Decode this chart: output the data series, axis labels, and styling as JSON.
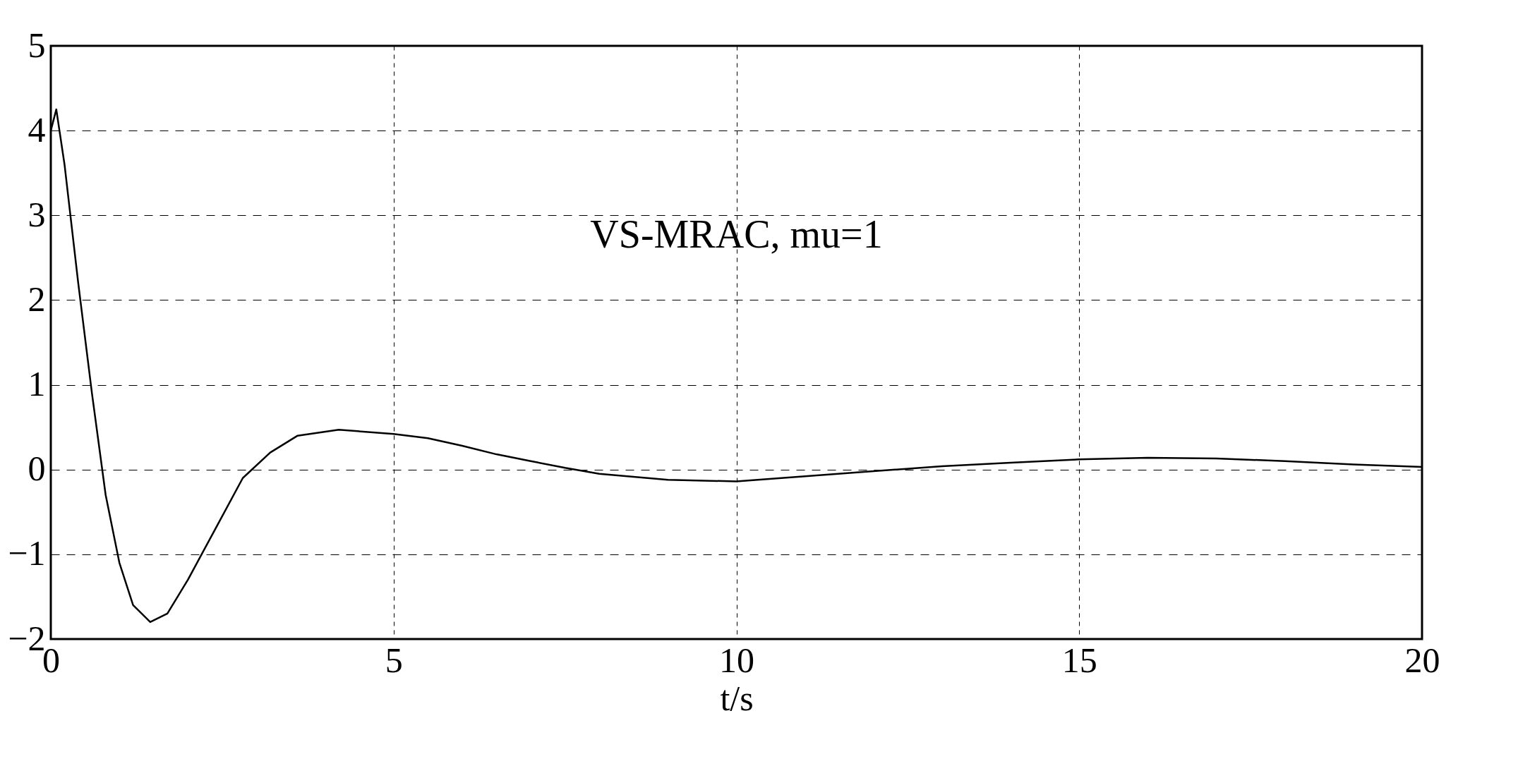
{
  "chart_data": {
    "type": "line",
    "xlabel": "t/s",
    "annotations": [
      "VS-MRAC, mu=1"
    ],
    "x": [
      0,
      0.08,
      0.2,
      0.4,
      0.6,
      0.8,
      1.0,
      1.2,
      1.45,
      1.7,
      2.0,
      2.4,
      2.8,
      3.2,
      3.6,
      4.2,
      5,
      5.5,
      6,
      6.5,
      7,
      7.5,
      8,
      9,
      10,
      11,
      12,
      13,
      14,
      15,
      16,
      17,
      18,
      19,
      20
    ],
    "series": [
      {
        "color": "#000000",
        "values": [
          4.0,
          4.25,
          3.6,
          2.2,
          0.9,
          -0.3,
          -1.1,
          -1.6,
          -1.8,
          -1.7,
          -1.3,
          -0.7,
          -0.1,
          0.2,
          0.4,
          0.47,
          0.42,
          0.37,
          0.28,
          0.18,
          0.1,
          0.02,
          -0.05,
          -0.12,
          -0.14,
          -0.08,
          -0.02,
          0.04,
          0.08,
          0.12,
          0.14,
          0.13,
          0.1,
          0.06,
          0.03
        ]
      }
    ],
    "xlim": [
      0,
      20
    ],
    "xticks": [
      0,
      5,
      10,
      15,
      20
    ],
    "ylim": [
      -2,
      5
    ],
    "yticks": [
      -2,
      -1,
      0,
      1,
      2,
      3,
      4,
      5
    ],
    "grid": true,
    "line_style": "solid",
    "marker": "none"
  }
}
